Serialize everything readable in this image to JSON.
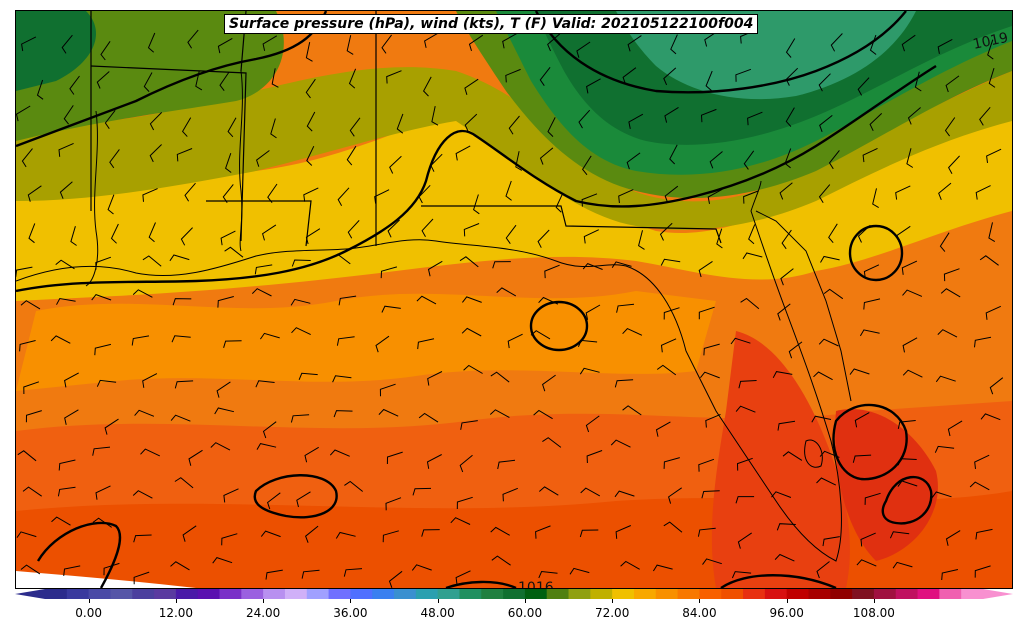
{
  "title": "Surface pressure (hPa), wind (kts), T (F) Valid: 202105122100f004",
  "isobar_labels": [
    "1019",
    "1016"
  ],
  "colorbar": {
    "ticks": [
      "0.00",
      "12.00",
      "24.00",
      "36.00",
      "48.00",
      "60.00",
      "72.00",
      "84.00",
      "96.00",
      "108.00"
    ],
    "min": -6,
    "max": 123,
    "extend": "both",
    "colors": [
      "#2c2c8c",
      "#3a3a9e",
      "#4a4aa6",
      "#5656a8",
      "#4b3f9e",
      "#5a3aa0",
      "#4a1aa8",
      "#5a10b0",
      "#7a30c8",
      "#9a60e0",
      "#b890f0",
      "#d0b0f8",
      "#a0a0ff",
      "#7070ff",
      "#5070ff",
      "#3a80f0",
      "#3a90d0",
      "#2aa0b0",
      "#30a090",
      "#209060",
      "#208040",
      "#107030",
      "#006010",
      "#508010",
      "#90a010",
      "#c0b000",
      "#f0c000",
      "#f8a800",
      "#f89000",
      "#f87800",
      "#f86000",
      "#f05000",
      "#e83010",
      "#d81010",
      "#c00000",
      "#a80000",
      "#900000",
      "#801020",
      "#a01040",
      "#c01060",
      "#e01080",
      "#f060b0",
      "#f890d0"
    ]
  },
  "map": {
    "colors": {
      "cool_green": "#2e9a6a",
      "dark_green": "#107a30",
      "green": "#1a8a3a",
      "olive": "#5a8a10",
      "olive_yellow": "#a8a000",
      "yellow": "#f0c000",
      "orange_light": "#f8a800",
      "orange": "#f88000",
      "orange_dark": "#f06000",
      "red_orange": "#e84000"
    },
    "features": [
      "state-borders",
      "coastline",
      "isobars",
      "wind-barbs",
      "temperature-fill"
    ]
  }
}
